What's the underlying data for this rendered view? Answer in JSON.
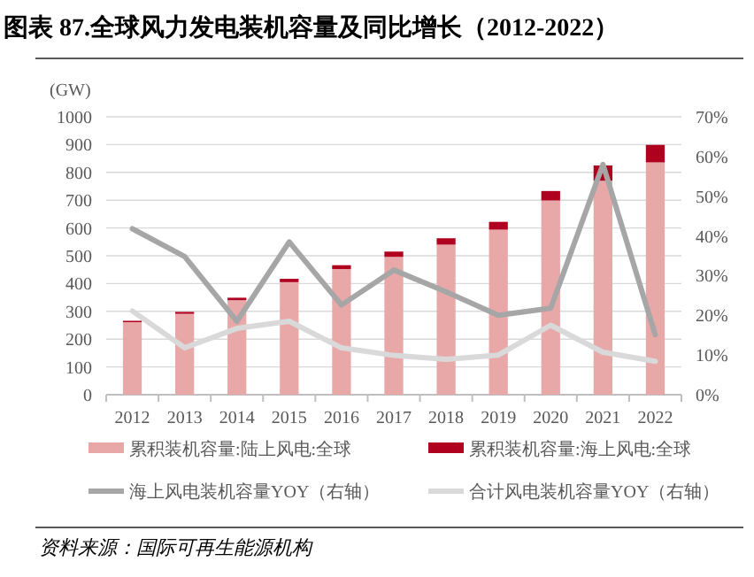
{
  "chart_data": {
    "type": "bar",
    "stacked": true,
    "title": "图表 87.全球风力发电装机容量及同比增长（2012-2022）",
    "ylabel": "(GW)",
    "categories": [
      "2012",
      "2013",
      "2014",
      "2015",
      "2016",
      "2017",
      "2018",
      "2019",
      "2020",
      "2021",
      "2022"
    ],
    "series": [
      {
        "name": "累积装机容量:陆上风电:全球",
        "color": "#e9a8a8",
        "values": [
          261,
          291,
          340,
          405,
          452,
          496,
          540,
          594,
          699,
          770,
          836
        ]
      },
      {
        "name": "累积装机容量:海上风电:全球",
        "color": "#b0001f",
        "values": [
          5,
          7,
          9,
          12,
          14,
          19,
          23,
          28,
          34,
          55,
          63
        ]
      },
      {
        "name": "海上风电装机容量YOY（右轴）",
        "type": "line",
        "axis": "y2",
        "color": "#a6a6a6",
        "values": [
          41.8,
          34.8,
          18.5,
          38.5,
          22.6,
          31.4,
          25.9,
          20.0,
          21.8,
          58.0,
          15.1
        ]
      },
      {
        "name": "合计风电装机容量YOY（右轴）",
        "type": "line",
        "axis": "y2",
        "color": "#d9d9d9",
        "values": [
          21.1,
          11.8,
          16.7,
          18.5,
          11.8,
          9.9,
          8.9,
          10.0,
          17.5,
          10.7,
          8.4
        ]
      }
    ],
    "ylim": [
      0,
      1000
    ],
    "yticks": [
      0,
      100,
      200,
      300,
      400,
      500,
      600,
      700,
      800,
      900,
      1000
    ],
    "y2lim": [
      0,
      70
    ],
    "y2ticks": [
      {
        "value": 0,
        "label": "0%"
      },
      {
        "value": 10,
        "label": "10%"
      },
      {
        "value": 20,
        "label": "20%"
      },
      {
        "value": 30,
        "label": "30%"
      },
      {
        "value": 40,
        "label": "40%"
      },
      {
        "value": 50,
        "label": "50%"
      },
      {
        "value": 60,
        "label": "60%"
      },
      {
        "value": 70,
        "label": "70%"
      }
    ],
    "grid": "y",
    "legend": "bottom",
    "annotations": [
      "资料来源：国际可再生能源机构"
    ]
  }
}
